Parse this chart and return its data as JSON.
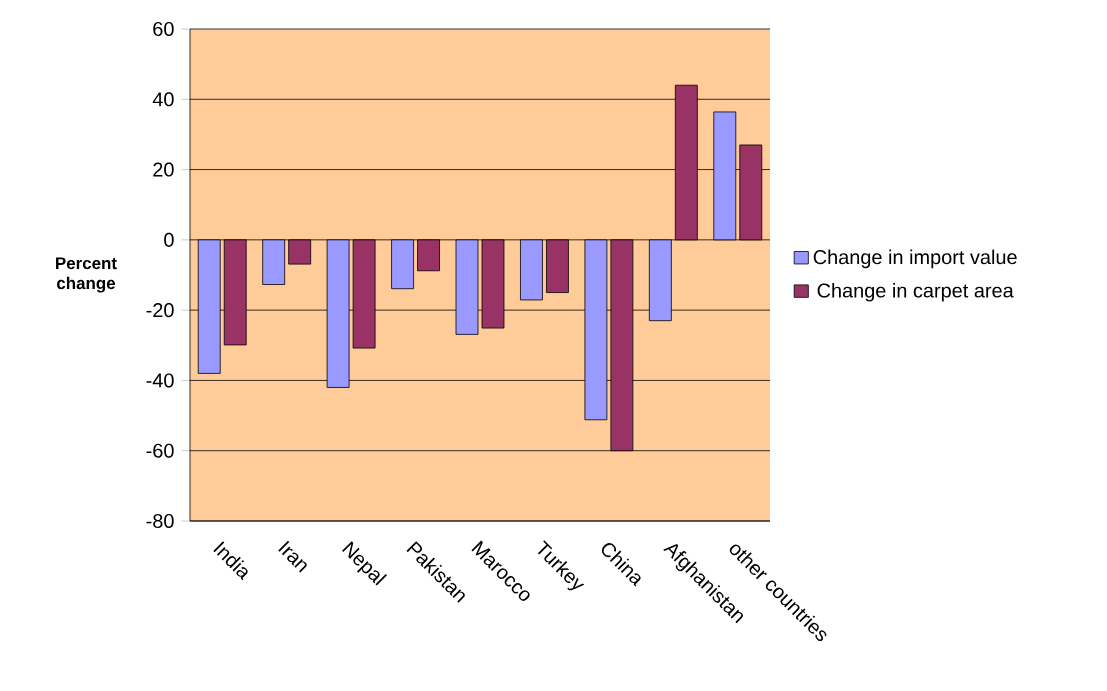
{
  "chart_data": {
    "type": "bar",
    "ylabel": "Percent change",
    "categories": [
      "India",
      "Iran",
      "Nepal",
      "Pakistan",
      "Marocco",
      "Turkey",
      "China",
      "Afghanistan",
      "other countries"
    ],
    "series": [
      {
        "name": "Change in import value",
        "color": "#9999ff",
        "values": [
          -38,
          -12.7,
          -42,
          -13.9,
          -26.9,
          -17.1,
          -51.2,
          -23,
          36.4
        ]
      },
      {
        "name": "Change in carpet area",
        "color": "#993366",
        "values": [
          -29.9,
          -6.9,
          -30.8,
          -8.8,
          -25.1,
          -15,
          -60,
          44,
          27
        ]
      }
    ],
    "ylim": [
      -80,
      60
    ],
    "yticks": [
      -80,
      -60,
      -40,
      -20,
      0,
      20,
      40,
      60
    ],
    "grid": "y",
    "legend": "right"
  }
}
